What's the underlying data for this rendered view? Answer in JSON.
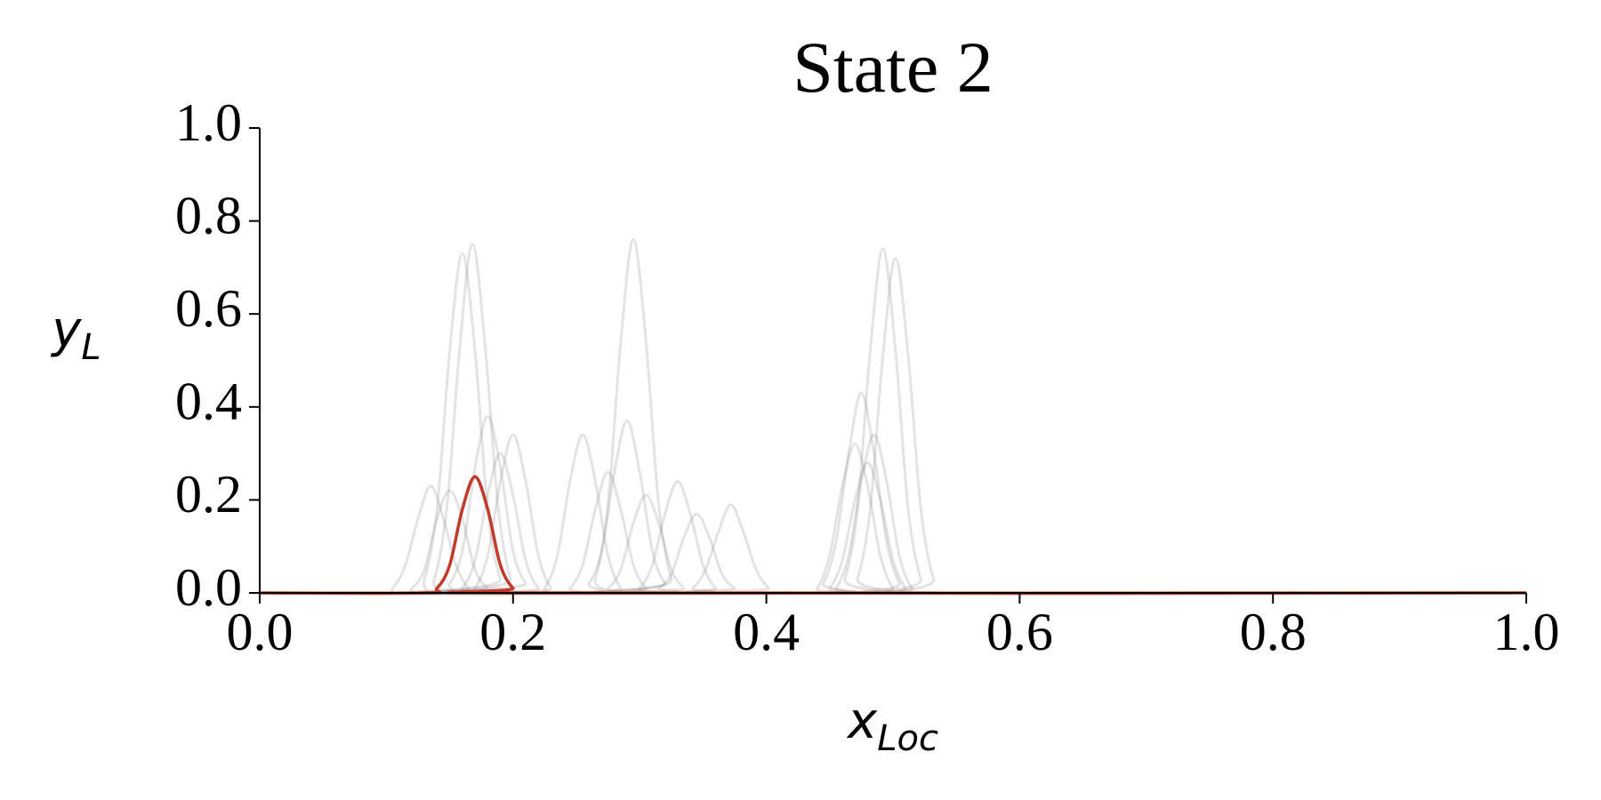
{
  "chart_data": {
    "type": "line",
    "title": "State 2",
    "xlabel": [
      "x",
      "Loc"
    ],
    "ylabel": [
      "y",
      "L"
    ],
    "xlim": [
      0,
      1
    ],
    "ylim": [
      0,
      1
    ],
    "xticks": [
      {
        "value": 0,
        "label": "0.0"
      },
      0.2,
      0.4,
      0.6,
      0.8,
      {
        "value": 1,
        "label": "1.0"
      }
    ],
    "yticks": [
      {
        "value": 0,
        "label": "0.0"
      },
      0.2,
      0.4,
      0.6,
      0.8,
      {
        "value": 1,
        "label": "1.0"
      }
    ],
    "alpha": 0.22,
    "series": [
      {
        "color": "#808080",
        "x": [
          0,
          0.12,
          0.13,
          0.14,
          0.15,
          0.16,
          0.17,
          0.18,
          0.19,
          0.2,
          1
        ],
        "values": [
          0,
          0,
          0.03,
          0.18,
          0.52,
          0.73,
          0.52,
          0.18,
          0.03,
          0,
          0
        ]
      },
      {
        "color": "#808080",
        "x": [
          0,
          0.128,
          0.138,
          0.148,
          0.158,
          0.168,
          0.178,
          0.188,
          0.198,
          0.208,
          1
        ],
        "values": [
          0,
          0,
          0.03,
          0.19,
          0.53,
          0.75,
          0.53,
          0.19,
          0.03,
          0,
          0
        ]
      },
      {
        "color": "#808080",
        "x": [
          0,
          0.14,
          0.15,
          0.16,
          0.17,
          0.18,
          0.19,
          0.2,
          0.21,
          0.22,
          1
        ],
        "values": [
          0,
          0,
          0.02,
          0.09,
          0.27,
          0.38,
          0.27,
          0.09,
          0.02,
          0,
          0
        ]
      },
      {
        "color": "#808080",
        "x": [
          0,
          0.16,
          0.17,
          0.18,
          0.19,
          0.2,
          0.21,
          0.22,
          0.23,
          0.24,
          1
        ],
        "values": [
          0,
          0,
          0.01,
          0.08,
          0.24,
          0.34,
          0.24,
          0.08,
          0.01,
          0,
          0
        ]
      },
      {
        "color": "#808080",
        "x": [
          0,
          0.095,
          0.105,
          0.115,
          0.125,
          0.135,
          0.145,
          0.155,
          0.165,
          0.175,
          1
        ],
        "values": [
          0,
          0,
          0.01,
          0.06,
          0.16,
          0.23,
          0.16,
          0.06,
          0.01,
          0,
          0
        ]
      },
      {
        "color": "#808080",
        "x": [
          0,
          0.15,
          0.16,
          0.17,
          0.18,
          0.19,
          0.2,
          0.21,
          0.22,
          0.23,
          1
        ],
        "values": [
          0,
          0,
          0.01,
          0.07,
          0.21,
          0.3,
          0.21,
          0.07,
          0.01,
          0,
          0
        ]
      },
      {
        "color": "#808080",
        "x": [
          0,
          0.11,
          0.12,
          0.13,
          0.14,
          0.15,
          0.16,
          0.17,
          0.18,
          0.19,
          1
        ],
        "values": [
          0,
          0,
          0.01,
          0.05,
          0.16,
          0.22,
          0.16,
          0.05,
          0.01,
          0,
          0
        ]
      },
      {
        "color": "#808080",
        "x": [
          0,
          0.215,
          0.225,
          0.235,
          0.245,
          0.255,
          0.265,
          0.275,
          0.285,
          0.295,
          1
        ],
        "values": [
          0,
          0,
          0.01,
          0.08,
          0.24,
          0.34,
          0.24,
          0.08,
          0.01,
          0,
          0
        ]
      },
      {
        "color": "#808080",
        "x": [
          0,
          0.255,
          0.265,
          0.275,
          0.285,
          0.295,
          0.305,
          0.315,
          0.325,
          0.335,
          1
        ],
        "values": [
          0,
          0,
          0.03,
          0.19,
          0.54,
          0.76,
          0.54,
          0.19,
          0.03,
          0,
          0
        ]
      },
      {
        "color": "#808080",
        "x": [
          0,
          0.25,
          0.26,
          0.27,
          0.28,
          0.29,
          0.3,
          0.31,
          0.32,
          0.33,
          1
        ],
        "values": [
          0,
          0,
          0.02,
          0.09,
          0.26,
          0.37,
          0.26,
          0.09,
          0.02,
          0,
          0
        ]
      },
      {
        "color": "#808080",
        "x": [
          0,
          0.235,
          0.245,
          0.255,
          0.265,
          0.275,
          0.285,
          0.295,
          0.305,
          0.315,
          1
        ],
        "values": [
          0,
          0,
          0.01,
          0.06,
          0.18,
          0.26,
          0.18,
          0.06,
          0.01,
          0,
          0
        ]
      },
      {
        "color": "#808080",
        "x": [
          0,
          0.265,
          0.275,
          0.285,
          0.295,
          0.305,
          0.315,
          0.325,
          0.335,
          0.345,
          1
        ],
        "values": [
          0,
          0,
          0.01,
          0.05,
          0.15,
          0.21,
          0.15,
          0.05,
          0.01,
          0,
          0
        ]
      },
      {
        "color": "#808080",
        "x": [
          0,
          0.29,
          0.3,
          0.31,
          0.32,
          0.33,
          0.34,
          0.35,
          0.36,
          0.37,
          1
        ],
        "values": [
          0,
          0,
          0.01,
          0.06,
          0.17,
          0.24,
          0.17,
          0.06,
          0.01,
          0,
          0
        ]
      },
      {
        "color": "#808080",
        "x": [
          0,
          0.305,
          0.315,
          0.325,
          0.335,
          0.345,
          0.355,
          0.365,
          0.375,
          0.385,
          1
        ],
        "values": [
          0,
          0,
          0.01,
          0.04,
          0.12,
          0.17,
          0.12,
          0.04,
          0.01,
          0,
          0
        ]
      },
      {
        "color": "#808080",
        "x": [
          0,
          0.332,
          0.342,
          0.352,
          0.362,
          0.372,
          0.382,
          0.392,
          0.402,
          0.412,
          1
        ],
        "values": [
          0,
          0,
          0.01,
          0.05,
          0.13,
          0.19,
          0.13,
          0.05,
          0.01,
          0,
          0
        ]
      },
      {
        "color": "#808080",
        "x": [
          0,
          0.452,
          0.462,
          0.472,
          0.482,
          0.492,
          0.502,
          0.512,
          0.522,
          0.532,
          1
        ],
        "values": [
          0,
          0,
          0.03,
          0.18,
          0.52,
          0.74,
          0.52,
          0.18,
          0.03,
          0,
          0
        ]
      },
      {
        "color": "#808080",
        "x": [
          0,
          0.462,
          0.472,
          0.482,
          0.492,
          0.502,
          0.512,
          0.522,
          0.532,
          0.542,
          1
        ],
        "values": [
          0,
          0,
          0.03,
          0.18,
          0.51,
          0.72,
          0.51,
          0.18,
          0.03,
          0,
          0
        ]
      },
      {
        "color": "#808080",
        "x": [
          0,
          0.435,
          0.445,
          0.455,
          0.465,
          0.475,
          0.485,
          0.495,
          0.505,
          0.515,
          1
        ],
        "values": [
          0,
          0,
          0.02,
          0.11,
          0.3,
          0.43,
          0.3,
          0.11,
          0.02,
          0,
          0
        ]
      },
      {
        "color": "#808080",
        "x": [
          0,
          0.445,
          0.455,
          0.465,
          0.475,
          0.485,
          0.495,
          0.505,
          0.515,
          0.525,
          1
        ],
        "values": [
          0,
          0,
          0.01,
          0.08,
          0.24,
          0.34,
          0.24,
          0.08,
          0.01,
          0,
          0
        ]
      },
      {
        "color": "#808080",
        "x": [
          0,
          0.44,
          0.45,
          0.46,
          0.47,
          0.48,
          0.49,
          0.5,
          0.51,
          0.52,
          1
        ],
        "values": [
          0,
          0,
          0.01,
          0.07,
          0.2,
          0.28,
          0.2,
          0.07,
          0.01,
          0,
          0
        ]
      },
      {
        "color": "#808080",
        "x": [
          0,
          0.43,
          0.44,
          0.45,
          0.46,
          0.47,
          0.48,
          0.49,
          0.5,
          0.51,
          1
        ],
        "values": [
          0,
          0,
          0.01,
          0.08,
          0.23,
          0.32,
          0.23,
          0.08,
          0.01,
          0,
          0
        ]
      },
      {
        "color": "#c0392b",
        "x": [
          0,
          0.13,
          0.14,
          0.15,
          0.16,
          0.17,
          0.18,
          0.19,
          0.2,
          0.21,
          1
        ],
        "values": [
          0,
          0,
          0.01,
          0.06,
          0.18,
          0.25,
          0.18,
          0.06,
          0.01,
          0,
          0
        ]
      }
    ]
  }
}
